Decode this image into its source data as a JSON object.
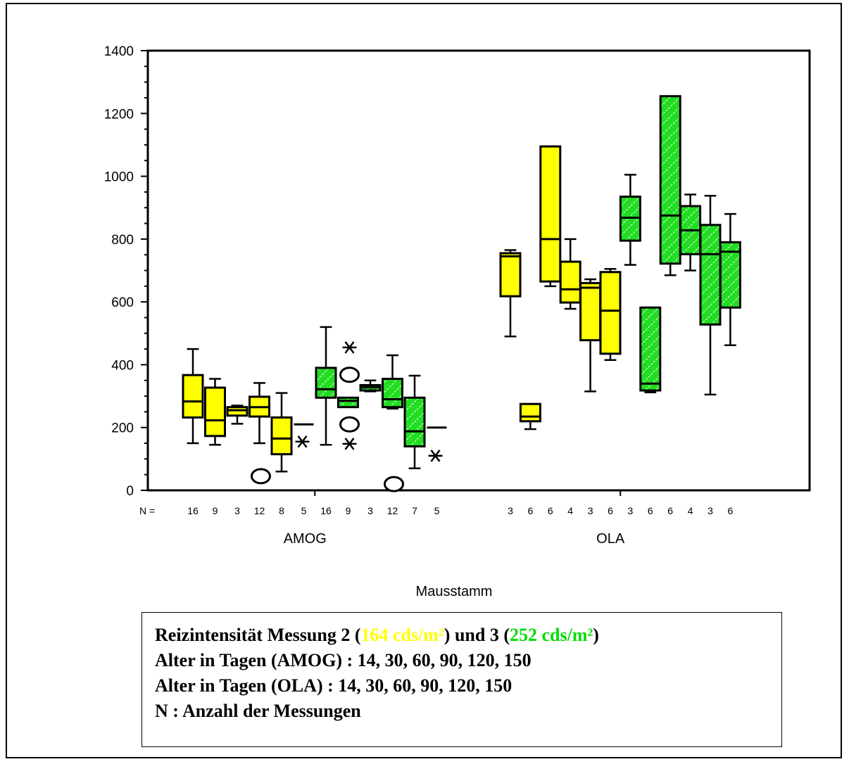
{
  "chart_data": {
    "type": "boxplot",
    "title": "",
    "xlabel": "Mausstamm",
    "ylabel": "",
    "ylim": [
      0,
      1400
    ],
    "yticks": [
      0,
      200,
      400,
      600,
      800,
      1000,
      1200,
      1400
    ],
    "n_label": "N =",
    "groups": [
      "AMOG",
      "OLA"
    ],
    "colors": {
      "yellow": "#ffff00",
      "green": "#22dd22"
    },
    "boxes": [
      {
        "group": "AMOG",
        "color": "yellow",
        "n": 16,
        "whisker_low": 150,
        "q1": 232,
        "median": 283,
        "q3": 367,
        "whisker_high": 450,
        "outliers": []
      },
      {
        "group": "AMOG",
        "color": "yellow",
        "n": 9,
        "whisker_low": 145,
        "q1": 173,
        "median": 223,
        "q3": 327,
        "whisker_high": 355,
        "outliers": []
      },
      {
        "group": "AMOG",
        "color": "yellow",
        "n": 3,
        "whisker_low": 212,
        "q1": 238,
        "median": 255,
        "q3": 265,
        "whisker_high": 270,
        "outliers": []
      },
      {
        "group": "AMOG",
        "color": "yellow",
        "n": 12,
        "whisker_low": 150,
        "q1": 235,
        "median": 265,
        "q3": 298,
        "whisker_high": 342,
        "outliers": [
          {
            "type": "circle",
            "value": 45
          }
        ]
      },
      {
        "group": "AMOG",
        "color": "yellow",
        "n": 8,
        "whisker_low": 60,
        "q1": 115,
        "median": 165,
        "q3": 232,
        "whisker_high": 310,
        "outliers": []
      },
      {
        "group": "AMOG",
        "color": "yellow",
        "n": 5,
        "whisker_low": 210,
        "q1": 210,
        "median": 210,
        "q3": 210,
        "whisker_high": 210,
        "outliers": [
          {
            "type": "star",
            "value": 155
          }
        ]
      },
      {
        "group": "AMOG",
        "color": "green",
        "n": 16,
        "whisker_low": 145,
        "q1": 295,
        "median": 322,
        "q3": 390,
        "whisker_high": 520,
        "outliers": []
      },
      {
        "group": "AMOG",
        "color": "green",
        "n": 9,
        "whisker_low": 265,
        "q1": 265,
        "median": 285,
        "q3": 295,
        "whisker_high": 295,
        "outliers": [
          {
            "type": "star",
            "value": 455
          },
          {
            "type": "circle",
            "value": 368
          },
          {
            "type": "circle",
            "value": 210
          },
          {
            "type": "star",
            "value": 148
          }
        ]
      },
      {
        "group": "AMOG",
        "color": "green",
        "n": 3,
        "whisker_low": 315,
        "q1": 318,
        "median": 328,
        "q3": 335,
        "whisker_high": 350,
        "outliers": []
      },
      {
        "group": "AMOG",
        "color": "green",
        "n": 12,
        "whisker_low": 260,
        "q1": 265,
        "median": 290,
        "q3": 355,
        "whisker_high": 430,
        "outliers": [
          {
            "type": "circle",
            "value": 20
          }
        ]
      },
      {
        "group": "AMOG",
        "color": "green",
        "n": 7,
        "whisker_low": 70,
        "q1": 140,
        "median": 188,
        "q3": 295,
        "whisker_high": 365,
        "outliers": []
      },
      {
        "group": "AMOG",
        "color": "green",
        "n": 5,
        "whisker_low": 200,
        "q1": 200,
        "median": 200,
        "q3": 200,
        "whisker_high": 200,
        "outliers": [
          {
            "type": "star",
            "value": 110
          }
        ]
      },
      {
        "group": "OLA",
        "color": "yellow",
        "n": 3,
        "whisker_low": 490,
        "q1": 618,
        "median": 745,
        "q3": 755,
        "whisker_high": 765,
        "outliers": []
      },
      {
        "group": "OLA",
        "color": "yellow",
        "n": 6,
        "whisker_low": 195,
        "q1": 220,
        "median": 235,
        "q3": 275,
        "whisker_high": 275,
        "outliers": []
      },
      {
        "group": "OLA",
        "color": "yellow",
        "n": 6,
        "whisker_low": 650,
        "q1": 665,
        "median": 800,
        "q3": 1095,
        "whisker_high": 1095,
        "outliers": []
      },
      {
        "group": "OLA",
        "color": "yellow",
        "n": 4,
        "whisker_low": 578,
        "q1": 598,
        "median": 640,
        "q3": 728,
        "whisker_high": 800,
        "outliers": []
      },
      {
        "group": "OLA",
        "color": "yellow",
        "n": 3,
        "whisker_low": 315,
        "q1": 478,
        "median": 645,
        "q3": 660,
        "whisker_high": 672,
        "outliers": []
      },
      {
        "group": "OLA",
        "color": "yellow",
        "n": 6,
        "whisker_low": 415,
        "q1": 435,
        "median": 572,
        "q3": 695,
        "whisker_high": 705,
        "outliers": []
      },
      {
        "group": "OLA",
        "color": "green",
        "n": 3,
        "whisker_low": 718,
        "q1": 795,
        "median": 868,
        "q3": 935,
        "whisker_high": 1005,
        "outliers": []
      },
      {
        "group": "OLA",
        "color": "green",
        "n": 6,
        "whisker_low": 312,
        "q1": 318,
        "median": 340,
        "q3": 582,
        "whisker_high": 582,
        "outliers": []
      },
      {
        "group": "OLA",
        "color": "green",
        "n": 6,
        "whisker_low": 685,
        "q1": 722,
        "median": 875,
        "q3": 1255,
        "whisker_high": 1255,
        "outliers": []
      },
      {
        "group": "OLA",
        "color": "green",
        "n": 4,
        "whisker_low": 700,
        "q1": 752,
        "median": 828,
        "q3": 905,
        "whisker_high": 942,
        "outliers": []
      },
      {
        "group": "OLA",
        "color": "green",
        "n": 3,
        "whisker_low": 305,
        "q1": 528,
        "median": 752,
        "q3": 845,
        "whisker_high": 938,
        "outliers": []
      },
      {
        "group": "OLA",
        "color": "green",
        "n": 6,
        "whisker_low": 462,
        "q1": 582,
        "median": 760,
        "q3": 790,
        "whisker_high": 880,
        "outliers": []
      }
    ]
  },
  "legend": {
    "line1_prefix": "Reizintensität Messung 2 (",
    "line1_yellow": "164 cds/m²",
    "line1_mid": ") und 3 (",
    "line1_green": "252 cds/m²",
    "line1_suffix": ")",
    "line2": "Alter in Tagen (AMOG) : 14, 30, 60, 90, 120, 150",
    "line3": "Alter in Tagen (OLA) : 14, 30, 60, 90, 120, 150",
    "line4": "N : Anzahl der Messungen"
  }
}
